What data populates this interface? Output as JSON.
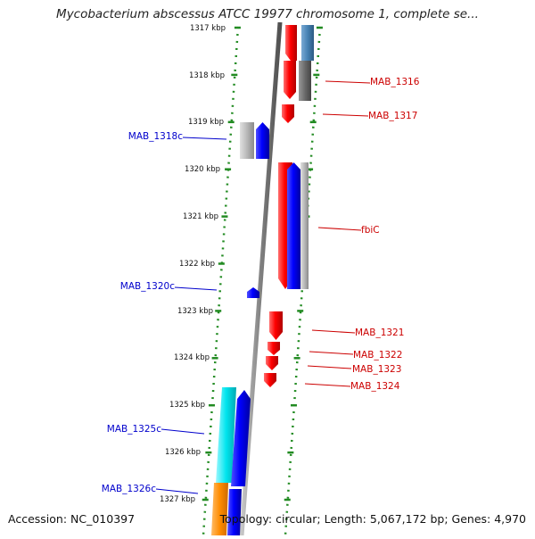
{
  "title": "Mycobacterium abscessus ATCC 19977 chromosome 1, complete se...",
  "footer": {
    "accession": "Accession: NC_010397",
    "summary": "Topology: circular; Length: 5,067,172 bp; Genes: 4,970"
  },
  "kbp_labels": [
    "1317 kbp",
    "1318 kbp",
    "1319 kbp",
    "1320 kbp",
    "1321 kbp",
    "1322 kbp",
    "1323 kbp",
    "1324 kbp",
    "1325 kbp",
    "1326 kbp",
    "1327 kbp"
  ],
  "genes_forward": [
    "MAB_1316",
    "MAB_1317",
    "fbiC",
    "MAB_1321",
    "MAB_1322",
    "MAB_1323",
    "MAB_1324"
  ],
  "genes_reverse": [
    "MAB_1318c",
    "MAB_1320c",
    "MAB_1325c",
    "MAB_1326c"
  ],
  "colors": {
    "forward_gene": "#ff0000",
    "reverse_gene": "#0000ff",
    "forward_label": "#cc0000",
    "reverse_label": "#0000cc",
    "backbone": "#808080",
    "tick": "#228b22",
    "cyan_feature": "#00e5ee",
    "orange_feature": "#ff8c00",
    "steelblue_feature": "#4682b4"
  }
}
